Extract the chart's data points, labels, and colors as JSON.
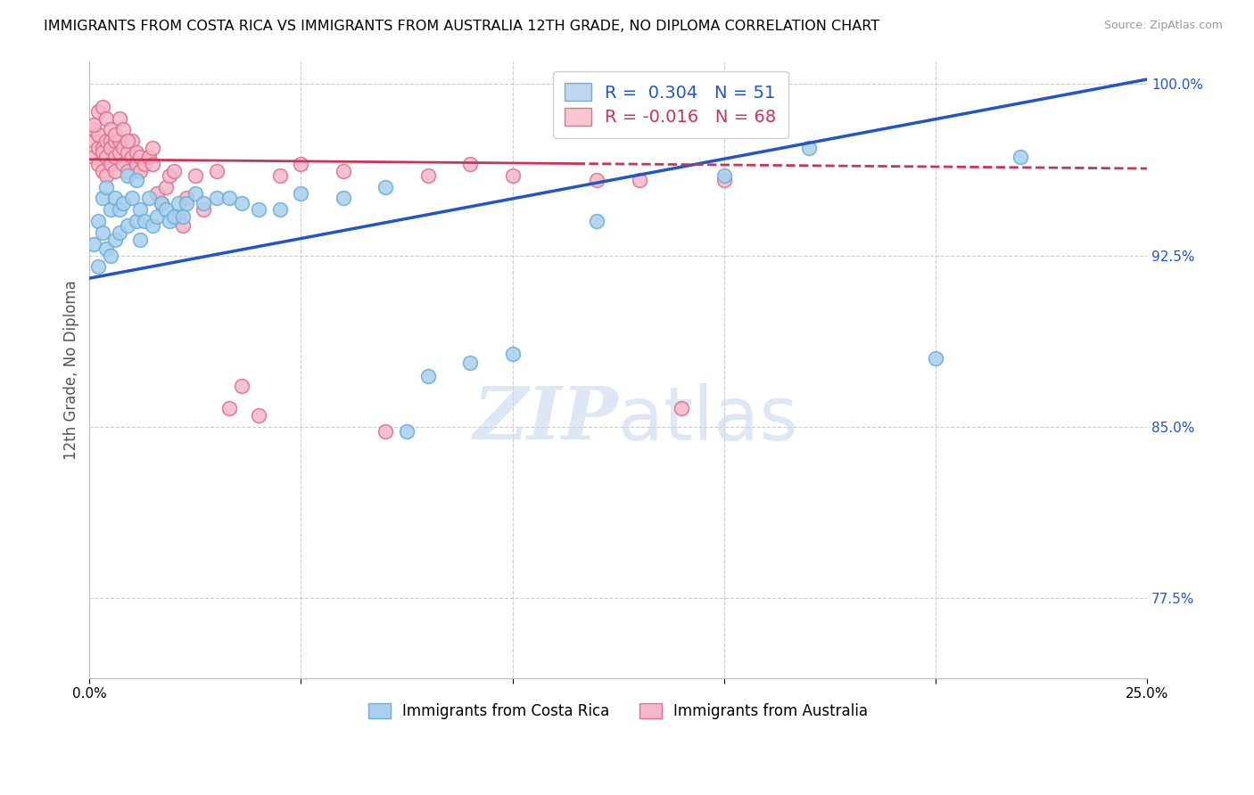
{
  "title": "IMMIGRANTS FROM COSTA RICA VS IMMIGRANTS FROM AUSTRALIA 12TH GRADE, NO DIPLOMA CORRELATION CHART",
  "source": "Source: ZipAtlas.com",
  "ylabel": "12th Grade, No Diploma",
  "series1_color": "#A8CFEE",
  "series1_edge_color": "#6BAED6",
  "series2_color": "#F4B8C8",
  "series2_edge_color": "#E07090",
  "series1_label": "Immigrants from Costa Rica",
  "series2_label": "Immigrants from Australia",
  "R1": 0.304,
  "N1": 51,
  "R2": -0.016,
  "N2": 68,
  "trendline1_color": "#2255CC",
  "trendline2_color": "#CC3355",
  "watermark_color": "#C8D8EE",
  "legend_box_color1": "#BDD7EE",
  "legend_box_color2": "#F9C6D0",
  "xlim": [
    0.0,
    0.25
  ],
  "ylim": [
    0.74,
    1.01
  ],
  "trendline1_x0": 0.0,
  "trendline1_y0": 0.915,
  "trendline1_x1": 0.25,
  "trendline1_y1": 1.002,
  "trendline2_x0": 0.0,
  "trendline2_y0": 0.967,
  "trendline2_x1": 0.25,
  "trendline2_y1": 0.963,
  "trendline2_solid_end": 0.115,
  "scatter1_x": [
    0.001,
    0.002,
    0.002,
    0.003,
    0.003,
    0.004,
    0.004,
    0.005,
    0.005,
    0.006,
    0.006,
    0.007,
    0.007,
    0.008,
    0.009,
    0.009,
    0.01,
    0.011,
    0.011,
    0.012,
    0.012,
    0.013,
    0.014,
    0.015,
    0.016,
    0.017,
    0.018,
    0.019,
    0.02,
    0.021,
    0.022,
    0.023,
    0.025,
    0.027,
    0.03,
    0.033,
    0.036,
    0.04,
    0.045,
    0.05,
    0.06,
    0.07,
    0.075,
    0.08,
    0.09,
    0.1,
    0.12,
    0.15,
    0.17,
    0.2,
    0.22
  ],
  "scatter1_y": [
    0.93,
    0.94,
    0.92,
    0.95,
    0.935,
    0.955,
    0.928,
    0.945,
    0.925,
    0.932,
    0.95,
    0.935,
    0.945,
    0.948,
    0.96,
    0.938,
    0.95,
    0.958,
    0.94,
    0.945,
    0.932,
    0.94,
    0.95,
    0.938,
    0.942,
    0.948,
    0.945,
    0.94,
    0.942,
    0.948,
    0.942,
    0.948,
    0.952,
    0.948,
    0.95,
    0.95,
    0.948,
    0.945,
    0.945,
    0.952,
    0.95,
    0.955,
    0.848,
    0.872,
    0.878,
    0.882,
    0.94,
    0.96,
    0.972,
    0.88,
    0.968
  ],
  "scatter2_x": [
    0.001,
    0.001,
    0.001,
    0.002,
    0.002,
    0.002,
    0.003,
    0.003,
    0.003,
    0.004,
    0.004,
    0.004,
    0.005,
    0.005,
    0.005,
    0.006,
    0.006,
    0.006,
    0.007,
    0.007,
    0.008,
    0.008,
    0.009,
    0.009,
    0.01,
    0.01,
    0.011,
    0.011,
    0.012,
    0.012,
    0.013,
    0.014,
    0.015,
    0.015,
    0.016,
    0.017,
    0.018,
    0.019,
    0.02,
    0.021,
    0.022,
    0.023,
    0.025,
    0.027,
    0.03,
    0.033,
    0.036,
    0.04,
    0.045,
    0.05,
    0.06,
    0.07,
    0.08,
    0.09,
    0.1,
    0.12,
    0.13,
    0.14,
    0.15,
    0.001,
    0.002,
    0.003,
    0.004,
    0.005,
    0.006,
    0.007,
    0.008,
    0.009
  ],
  "scatter2_y": [
    0.975,
    0.968,
    0.98,
    0.972,
    0.965,
    0.978,
    0.972,
    0.962,
    0.97,
    0.968,
    0.975,
    0.96,
    0.975,
    0.965,
    0.972,
    0.968,
    0.975,
    0.962,
    0.97,
    0.975,
    0.965,
    0.972,
    0.97,
    0.962,
    0.968,
    0.975,
    0.965,
    0.97,
    0.968,
    0.962,
    0.965,
    0.968,
    0.965,
    0.972,
    0.952,
    0.948,
    0.955,
    0.96,
    0.962,
    0.942,
    0.938,
    0.95,
    0.96,
    0.945,
    0.962,
    0.858,
    0.868,
    0.855,
    0.96,
    0.965,
    0.962,
    0.848,
    0.96,
    0.965,
    0.96,
    0.958,
    0.958,
    0.858,
    0.958,
    0.982,
    0.988,
    0.99,
    0.985,
    0.98,
    0.978,
    0.985,
    0.98,
    0.975
  ]
}
